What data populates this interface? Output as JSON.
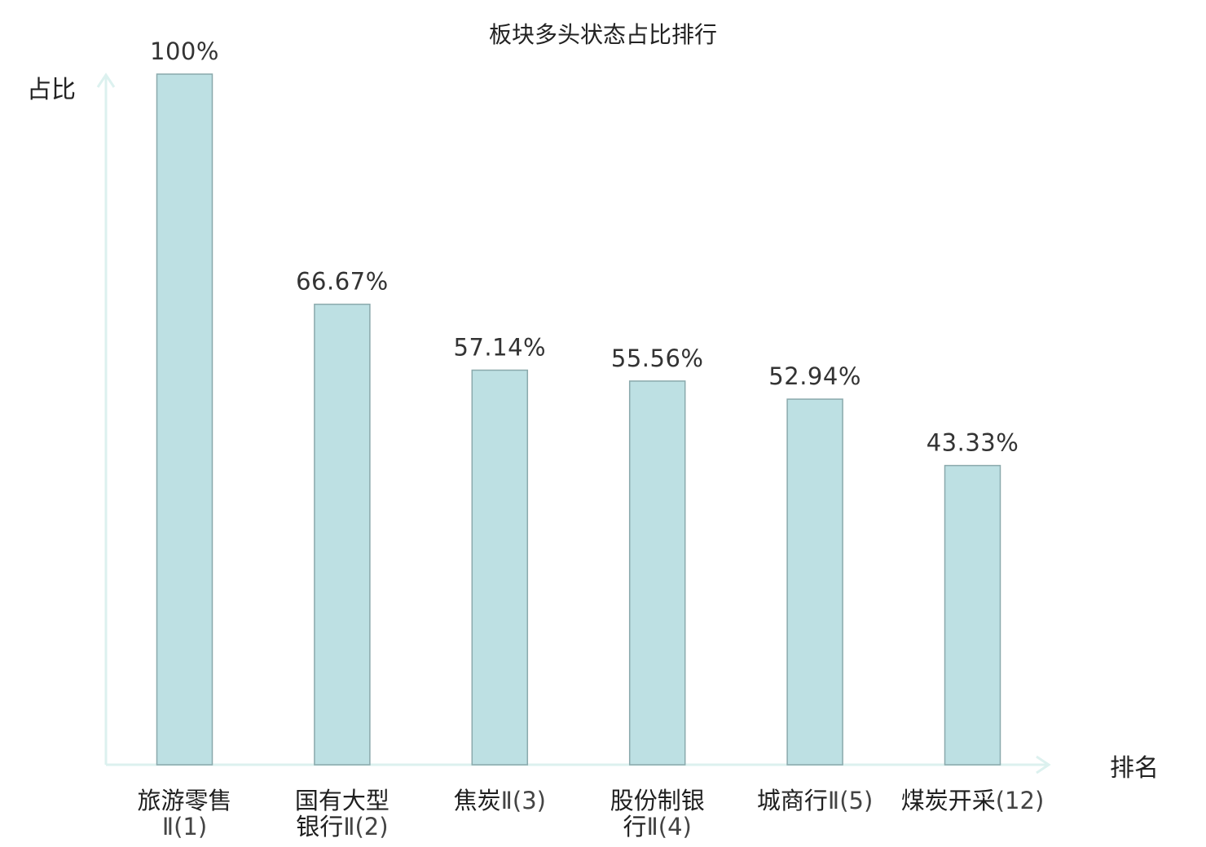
{
  "colors": {
    "bar_fill": "#bde0e3",
    "bar_stroke": "#8aa9ac",
    "axis": "#dcf1ef",
    "highlight": "#e52a2a"
  },
  "chart_data": {
    "type": "bar",
    "title": "板块多头状态占比排行",
    "xlabel": "排名",
    "ylabel": "占比",
    "ylim": [
      0,
      100
    ],
    "grid": false,
    "categories": [
      {
        "lines": [
          {
            "name": "旅游零售",
            "rank": ""
          },
          {
            "name": "",
            "rank": "Ⅱ(1)"
          }
        ],
        "highlight": false
      },
      {
        "lines": [
          {
            "name": "国有大型",
            "rank": ""
          },
          {
            "name": "银行",
            "rank": "Ⅱ(2)"
          }
        ],
        "highlight": false
      },
      {
        "lines": [
          {
            "name": "焦炭",
            "rank": "Ⅱ(3)"
          }
        ],
        "highlight": false
      },
      {
        "lines": [
          {
            "name": "股份制银",
            "rank": ""
          },
          {
            "name": "行",
            "rank": "Ⅱ(4)"
          }
        ],
        "highlight": false
      },
      {
        "lines": [
          {
            "name": "城商行",
            "rank": "Ⅱ(5)"
          }
        ],
        "highlight": false
      },
      {
        "lines": [
          {
            "name": "煤炭开采",
            "rank": "(12)"
          }
        ],
        "highlight": true
      }
    ],
    "values": [
      100,
      66.67,
      57.14,
      55.56,
      52.94,
      43.33
    ],
    "value_labels": [
      "100%",
      "66.67%",
      "57.14%",
      "55.56%",
      "52.94%",
      "43.33%"
    ]
  }
}
